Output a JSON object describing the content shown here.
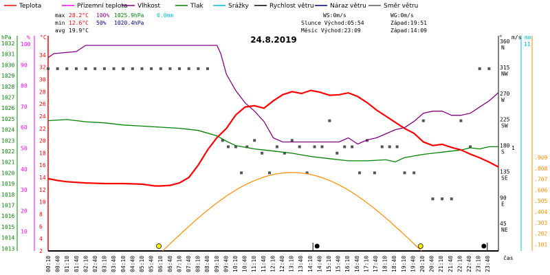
{
  "chart_data": {
    "type": "line",
    "title": "24.8.2019",
    "xlabel": "čas",
    "legend": [
      {
        "name": "Teplota",
        "color": "#ff0000"
      },
      {
        "name": "Přízemní teplota",
        "color": "#ff00ff"
      },
      {
        "name": "Vlhkost",
        "color": "#800080"
      },
      {
        "name": "Tlak",
        "color": "#008000"
      },
      {
        "name": "Srážky",
        "color": "#00bcd4"
      },
      {
        "name": "Rychlost větru",
        "color": "#000000"
      },
      {
        "name": "Náraz větru",
        "color": "#000080"
      },
      {
        "name": "Směr větru",
        "color": "#555555"
      }
    ],
    "stats": {
      "max_label": "max",
      "max_temp": "28.2°C",
      "max_hum": "100%",
      "max_press": "1025.9hPa",
      "max_rain": "0.0mm",
      "min_label": "min",
      "min_temp": "12.6°C",
      "min_hum": "50%",
      "min_press": "1020.4hPa",
      "avg_label": "avg",
      "avg_temp": "19.9°C"
    },
    "info": {
      "ws": "WS:0m/s",
      "wg": "WG:0m/s",
      "sun_rise": "Slunce Východ:05:54",
      "sun_set": "Západ:19:51",
      "moon_rise": "Měsíc  Východ:23:09",
      "moon_set": "Západ:14:09"
    },
    "axes": {
      "hpa": {
        "unit": "hPa",
        "range": [
          1013,
          1032
        ],
        "ticks": [
          "1032",
          "1031",
          "1030",
          "1029",
          "1028",
          "1027",
          "1026",
          "1025",
          "1024",
          "1023",
          "1022",
          "1021",
          "1020",
          "1019",
          "1018",
          "1017",
          "1016",
          "1015",
          "1014",
          "1013"
        ]
      },
      "pct": {
        "unit": "%",
        "range": [
          0,
          100
        ],
        "ticks": [
          "100",
          "90",
          "80",
          "70",
          "60",
          "50",
          "40",
          "30",
          "20",
          "10"
        ]
      },
      "celsius": {
        "unit": "°C",
        "range": [
          2,
          36
        ],
        "ticks": [
          "34",
          "32",
          "30",
          "28",
          "26",
          "24",
          "22",
          "20",
          "18",
          "16",
          "14",
          "12",
          "10",
          "8",
          "6",
          "4",
          "2"
        ]
      },
      "dir": {
        "unit": "°",
        "ticks": [
          {
            "v": "360",
            "c": "N"
          },
          {
            "v": "315",
            "c": "NW"
          },
          {
            "v": "270",
            "c": "W"
          },
          {
            "v": "225",
            "c": "SW"
          },
          {
            "v": "180",
            "c": "S"
          },
          {
            "v": "135",
            "c": "SE"
          },
          {
            "v": "90",
            "c": "E"
          },
          {
            "v": "45",
            "c": "NE"
          }
        ]
      },
      "wind": {
        "unit": "m/s",
        "ticks": [
          "1"
        ]
      },
      "rain": {
        "unit": "mm",
        "ticks": [
          "1",
          "-1",
          ".909",
          ".808",
          ".707",
          ".606",
          ".505",
          ".404",
          ".303",
          ".202",
          ".101"
        ]
      }
    },
    "x_ticks": [
      "00:10",
      "00:40",
      "01:10",
      "01:40",
      "02:10",
      "02:40",
      "03:10",
      "03:40",
      "04:10",
      "04:40",
      "05:10",
      "05:40",
      "06:10",
      "06:40",
      "07:10",
      "07:40",
      "08:10",
      "08:40",
      "09:10",
      "09:40",
      "10:10",
      "10:40",
      "11:10",
      "11:40",
      "12:10",
      "12:40",
      "13:10",
      "13:40",
      "14:10",
      "14:40",
      "15:10",
      "15:40",
      "16:10",
      "16:40",
      "17:10",
      "17:40",
      "18:10",
      "18:40",
      "19:10",
      "19:40",
      "20:10",
      "20:40",
      "21:10",
      "21:40",
      "22:10",
      "22:40",
      "23:10",
      "23:40"
    ],
    "temperature": {
      "name": "Teplota",
      "x": [
        0,
        0.5,
        1,
        2,
        3,
        4,
        5,
        5.7,
        6,
        6.5,
        7,
        7.5,
        8,
        8.5,
        9,
        9.5,
        10,
        10.5,
        11,
        11.5,
        12,
        12.5,
        13,
        13.5,
        14,
        14.5,
        15,
        15.5,
        16,
        16.5,
        17,
        17.5,
        18,
        18.5,
        19,
        19.5,
        20,
        20.5,
        21,
        21.5,
        22,
        22.5,
        23,
        23.5,
        24
      ],
      "y": [
        13.8,
        13.5,
        13.3,
        13.1,
        13.0,
        13.0,
        12.9,
        12.6,
        12.6,
        12.7,
        13.1,
        14.0,
        16.0,
        18.5,
        20.5,
        22.0,
        24.2,
        25.5,
        25.7,
        25.3,
        26.5,
        27.5,
        28.0,
        27.7,
        28.2,
        27.9,
        27.4,
        27.5,
        27.8,
        27.2,
        26.2,
        25.0,
        24.0,
        23.0,
        22.0,
        21.2,
        19.8,
        19.2,
        19.4,
        18.9,
        18.5,
        17.8,
        17.2,
        16.5,
        15.7
      ]
    },
    "humidity": {
      "name": "Vlhkost",
      "x": [
        0,
        0.3,
        1.5,
        2,
        3,
        4,
        5,
        6,
        7,
        8,
        9,
        9.2,
        9.5,
        10,
        10.5,
        11,
        11.5,
        12,
        12.5,
        13,
        13.5,
        14,
        14.5,
        15,
        15.5,
        16,
        16.5,
        17,
        17.5,
        18,
        18.5,
        19,
        19.5,
        20,
        20.5,
        21,
        21.5,
        22,
        22.5,
        23,
        23.5,
        24
      ],
      "y": [
        94,
        96,
        97,
        100,
        100,
        100,
        100,
        100,
        100,
        100,
        100,
        96,
        86,
        78,
        72,
        68,
        63,
        55,
        53,
        53,
        53,
        53,
        53,
        53,
        53,
        55,
        52,
        54,
        55,
        57,
        59,
        60,
        63,
        67,
        68,
        68,
        66,
        66,
        67,
        70,
        73,
        77
      ]
    },
    "pressure": {
      "name": "Tlak",
      "x": [
        0,
        1,
        2,
        3,
        4,
        5,
        6,
        7,
        8,
        9,
        9.5,
        10,
        11,
        12,
        13,
        14,
        15,
        16,
        17,
        18,
        18.5,
        19,
        20,
        21,
        22,
        22.5,
        23,
        23.5,
        24
      ],
      "y": [
        1025.0,
        1025.1,
        1024.9,
        1024.8,
        1024.6,
        1024.5,
        1024.4,
        1024.3,
        1024.1,
        1023.6,
        1023.1,
        1022.7,
        1022.4,
        1022.2,
        1022.0,
        1021.7,
        1021.5,
        1021.3,
        1021.3,
        1021.4,
        1021.2,
        1021.6,
        1021.9,
        1022.1,
        1022.3,
        1022.5,
        1022.4,
        1022.6,
        1022.6
      ]
    },
    "sun_curve": {
      "start": 6.1,
      "end": 19.9,
      "peak_y": 14.8,
      "color": "#ff8c00"
    },
    "wind_direction_points": {
      "x": [
        0,
        0.5,
        1,
        1.5,
        2,
        2.5,
        3,
        3.5,
        4,
        4.5,
        5,
        5.5,
        6,
        6.5,
        7,
        7.5,
        8,
        8.5,
        9.3,
        9.6,
        10,
        10.3,
        10.6,
        11,
        11.4,
        11.8,
        12.2,
        12.6,
        13,
        13.4,
        13.8,
        14.2,
        14.6,
        15,
        15.4,
        15.8,
        16.2,
        16.6,
        17,
        17.4,
        17.8,
        18.2,
        18.6,
        19,
        19.5,
        20,
        20.5,
        21,
        21.5,
        22,
        22.5,
        23,
        23.5
      ],
      "y": [
        315,
        315,
        315,
        315,
        315,
        315,
        315,
        315,
        315,
        315,
        315,
        315,
        315,
        315,
        315,
        315,
        315,
        315,
        191,
        180,
        180,
        135,
        180,
        191,
        169,
        135,
        180,
        169,
        191,
        180,
        135,
        180,
        180,
        225,
        169,
        180,
        180,
        135,
        191,
        135,
        180,
        180,
        180,
        135,
        135,
        225,
        90,
        90,
        90,
        225,
        180,
        315,
        315
      ]
    },
    "sunrise_x": 5.9,
    "sunset_x": 19.85,
    "moonrise_x": 23.15,
    "moonset_x": 14.15
  }
}
